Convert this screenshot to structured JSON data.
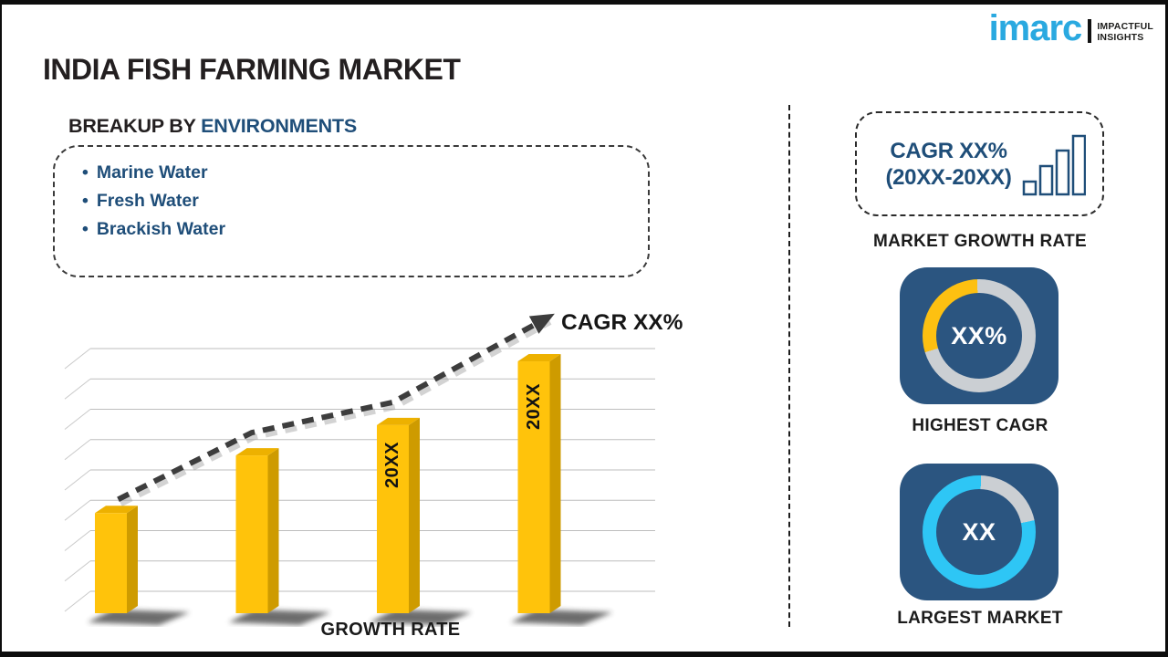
{
  "logo": {
    "brand": "imarc",
    "tagline1": "IMPACTFUL",
    "tagline2": "INSIGHTS"
  },
  "title": "INDIA FISH FARMING MARKET",
  "breakup": {
    "prefix": "BREAKUP BY",
    "highlight": "ENVIRONMENTS",
    "items": [
      "Marine Water",
      "Fresh Water",
      "Brackish Water"
    ]
  },
  "chart_data": {
    "type": "bar",
    "title": "",
    "xlabel": "GROWTH RATE",
    "ylabel": "",
    "categories": [
      "",
      "",
      "20XX",
      "20XX"
    ],
    "values_grid_units": [
      3.3,
      5.2,
      6.2,
      8.3
    ],
    "gridlines": 9,
    "grid_on": true,
    "bar_color": "#FFC30B",
    "trend_annotation": "CAGR XX%",
    "trend_style": "dashed-rising-arrow",
    "legend": "none"
  },
  "right_panel": {
    "cagr_box": {
      "line1": "CAGR XX%",
      "line2": "(20XX-20XX)",
      "icon": "bar-chart-icon"
    },
    "market_growth_caption": "MARKET GROWTH RATE",
    "highest_cagr": {
      "value": "XX%",
      "caption": "HIGHEST CAGR",
      "arc_color": "#FDC011",
      "base_color": "#CBCFD3",
      "arc_start_deg": 253,
      "arc_end_deg": 358
    },
    "largest_market": {
      "value": "XX",
      "caption": "LARGEST MARKET",
      "arc_color": "#CBCFD3",
      "base_color": "#2EC6F5",
      "arc_start_deg": 2,
      "arc_end_deg": 78
    }
  },
  "colors": {
    "accent_navy": "#1F4E79",
    "text_dark": "#231F20",
    "bar_yellow": "#FFC30B",
    "bar_side": "#CE9B00",
    "bar_top": "#EDB100",
    "tile_navy": "#2B5580",
    "ring_gray": "#CBCFD3",
    "ring_cyan": "#2EC6F5",
    "ring_yellow": "#FDC011",
    "logo_cyan": "#2AA9E0",
    "trend_gray": "#3D3D3D"
  }
}
